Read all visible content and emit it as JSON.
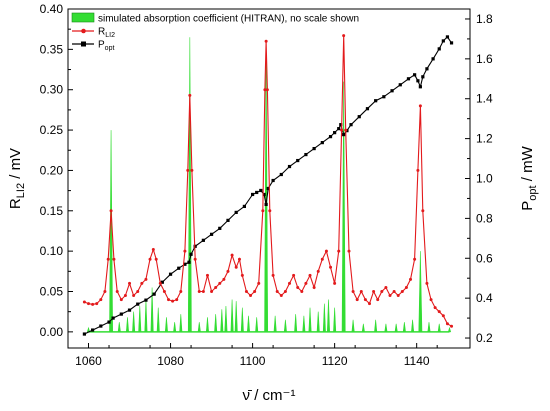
{
  "chart_data": {
    "type": "line",
    "title": "",
    "xlabel": "ν̄ / cm⁻¹",
    "ylabel_left": {
      "main": "R",
      "sub": "LI2",
      "unit": " / mV"
    },
    "ylabel_right": {
      "main": "P",
      "sub": "opt",
      "unit": " / mW"
    },
    "xlim": [
      1055,
      1153
    ],
    "ylim_left": [
      -0.02,
      0.4
    ],
    "ylim_right": [
      0.15,
      1.85
    ],
    "x_ticks": [
      "1060",
      "1080",
      "1100",
      "1120",
      "1140"
    ],
    "x_tick_values": [
      1060,
      1080,
      1100,
      1120,
      1140
    ],
    "y_left_ticks": [
      "0.00",
      "0.05",
      "0.10",
      "0.15",
      "0.20",
      "0.25",
      "0.30",
      "0.35",
      "0.40"
    ],
    "y_left_tick_values": [
      0,
      0.05,
      0.1,
      0.15,
      0.2,
      0.25,
      0.3,
      0.35,
      0.4
    ],
    "y_right_ticks": [
      "0.2",
      "0.4",
      "0.6",
      "0.8",
      "1.0",
      "1.2",
      "1.4",
      "1.6",
      "1.8"
    ],
    "y_right_tick_values": [
      0.2,
      0.4,
      0.6,
      0.8,
      1.0,
      1.2,
      1.4,
      1.6,
      1.8
    ],
    "grid": false,
    "legend_position": "top-left",
    "legend": [
      {
        "key": "hitran",
        "label": "simulated absorption coefficient (HITRAN), no scale shown",
        "sub": "",
        "after": ""
      },
      {
        "key": "rli2",
        "label": "R",
        "sub": "LI2",
        "after": ""
      },
      {
        "key": "popt",
        "label": "P",
        "sub": "opt",
        "after": ""
      }
    ],
    "colors": {
      "hitran": "#33dd33",
      "rli2": "#e31a1c",
      "popt": "#000000"
    },
    "series": [
      {
        "name": "simulated absorption coefficient (HITRAN), no scale shown",
        "key": "hitran",
        "axis": "left",
        "style": "fill",
        "peaks": [
          [
            1060.0,
            0.005
          ],
          [
            1065.5,
            0.25
          ],
          [
            1067.5,
            0.012
          ],
          [
            1069.5,
            0.018
          ],
          [
            1071.0,
            0.025
          ],
          [
            1072.5,
            0.032
          ],
          [
            1074.0,
            0.04
          ],
          [
            1075.5,
            0.055
          ],
          [
            1077.0,
            0.03
          ],
          [
            1079.0,
            0.018
          ],
          [
            1081.0,
            0.012
          ],
          [
            1082.5,
            0.022
          ],
          [
            1084.7,
            0.365
          ],
          [
            1087.0,
            0.012
          ],
          [
            1089.0,
            0.018
          ],
          [
            1091.0,
            0.022
          ],
          [
            1092.5,
            0.028
          ],
          [
            1093.5,
            0.032
          ],
          [
            1095.0,
            0.04
          ],
          [
            1096.0,
            0.038
          ],
          [
            1097.5,
            0.03
          ],
          [
            1099.0,
            0.02
          ],
          [
            1101.0,
            0.018
          ],
          [
            1103.3,
            0.36
          ],
          [
            1105.5,
            0.02
          ],
          [
            1108.0,
            0.015
          ],
          [
            1110.5,
            0.022
          ],
          [
            1112.5,
            0.02
          ],
          [
            1114.0,
            0.03
          ],
          [
            1116.0,
            0.025
          ],
          [
            1117.5,
            0.035
          ],
          [
            1118.5,
            0.04
          ],
          [
            1120.0,
            0.03
          ],
          [
            1122.2,
            0.31
          ],
          [
            1124.5,
            0.015
          ],
          [
            1127.0,
            0.01
          ],
          [
            1130.0,
            0.015
          ],
          [
            1132.5,
            0.01
          ],
          [
            1135.0,
            0.01
          ],
          [
            1137.0,
            0.012
          ],
          [
            1139.0,
            0.015
          ],
          [
            1140.9,
            0.1
          ],
          [
            1143.0,
            0.012
          ],
          [
            1145.5,
            0.01
          ],
          [
            1148.0,
            0.005
          ]
        ]
      },
      {
        "name": "R_LI2",
        "key": "rli2",
        "axis": "left",
        "style": "line-markers",
        "points": [
          [
            1059.0,
            0.037
          ],
          [
            1060.0,
            0.035
          ],
          [
            1061.0,
            0.034
          ],
          [
            1062.0,
            0.035
          ],
          [
            1063.0,
            0.04
          ],
          [
            1064.0,
            0.05
          ],
          [
            1064.8,
            0.09
          ],
          [
            1065.5,
            0.15
          ],
          [
            1066.2,
            0.09
          ],
          [
            1067.0,
            0.05
          ],
          [
            1068.0,
            0.04
          ],
          [
            1069.0,
            0.045
          ],
          [
            1070.0,
            0.06
          ],
          [
            1071.0,
            0.045
          ],
          [
            1072.0,
            0.05
          ],
          [
            1073.0,
            0.06
          ],
          [
            1074.0,
            0.065
          ],
          [
            1075.0,
            0.09
          ],
          [
            1075.8,
            0.102
          ],
          [
            1076.5,
            0.09
          ],
          [
            1077.5,
            0.06
          ],
          [
            1078.5,
            0.05
          ],
          [
            1079.5,
            0.04
          ],
          [
            1080.5,
            0.038
          ],
          [
            1081.5,
            0.04
          ],
          [
            1082.5,
            0.05
          ],
          [
            1083.5,
            0.1
          ],
          [
            1084.2,
            0.2
          ],
          [
            1084.7,
            0.293
          ],
          [
            1085.2,
            0.2
          ],
          [
            1086.0,
            0.09
          ],
          [
            1087.0,
            0.05
          ],
          [
            1088.0,
            0.05
          ],
          [
            1089.0,
            0.07
          ],
          [
            1090.0,
            0.05
          ],
          [
            1091.0,
            0.055
          ],
          [
            1092.0,
            0.06
          ],
          [
            1093.0,
            0.065
          ],
          [
            1094.0,
            0.075
          ],
          [
            1095.0,
            0.095
          ],
          [
            1096.0,
            0.08
          ],
          [
            1096.8,
            0.09
          ],
          [
            1097.5,
            0.07
          ],
          [
            1098.5,
            0.05
          ],
          [
            1099.5,
            0.045
          ],
          [
            1100.5,
            0.05
          ],
          [
            1101.5,
            0.06
          ],
          [
            1102.5,
            0.15
          ],
          [
            1103.0,
            0.3
          ],
          [
            1103.3,
            0.36
          ],
          [
            1103.6,
            0.3
          ],
          [
            1104.2,
            0.15
          ],
          [
            1105.0,
            0.07
          ],
          [
            1106.0,
            0.05
          ],
          [
            1107.0,
            0.045
          ],
          [
            1108.0,
            0.05
          ],
          [
            1109.0,
            0.06
          ],
          [
            1110.0,
            0.07
          ],
          [
            1111.0,
            0.055
          ],
          [
            1112.0,
            0.05
          ],
          [
            1113.0,
            0.06
          ],
          [
            1114.0,
            0.07
          ],
          [
            1115.0,
            0.055
          ],
          [
            1116.0,
            0.075
          ],
          [
            1117.0,
            0.09
          ],
          [
            1118.0,
            0.1
          ],
          [
            1119.0,
            0.08
          ],
          [
            1120.0,
            0.06
          ],
          [
            1121.0,
            0.1
          ],
          [
            1121.7,
            0.25
          ],
          [
            1122.2,
            0.367
          ],
          [
            1122.7,
            0.25
          ],
          [
            1123.5,
            0.1
          ],
          [
            1124.5,
            0.05
          ],
          [
            1125.5,
            0.04
          ],
          [
            1126.5,
            0.05
          ],
          [
            1127.5,
            0.04
          ],
          [
            1128.5,
            0.035
          ],
          [
            1129.5,
            0.05
          ],
          [
            1130.5,
            0.04
          ],
          [
            1131.5,
            0.05
          ],
          [
            1132.5,
            0.055
          ],
          [
            1133.5,
            0.045
          ],
          [
            1134.5,
            0.05
          ],
          [
            1135.5,
            0.045
          ],
          [
            1136.5,
            0.05
          ],
          [
            1137.5,
            0.055
          ],
          [
            1138.5,
            0.065
          ],
          [
            1139.5,
            0.09
          ],
          [
            1140.3,
            0.2
          ],
          [
            1140.9,
            0.28
          ],
          [
            1141.5,
            0.15
          ],
          [
            1142.5,
            0.06
          ],
          [
            1143.5,
            0.04
          ],
          [
            1144.5,
            0.03
          ],
          [
            1145.5,
            0.025
          ],
          [
            1146.5,
            0.02
          ],
          [
            1147.5,
            0.01
          ],
          [
            1148.5,
            0.007
          ]
        ]
      },
      {
        "name": "P_opt",
        "key": "popt",
        "axis": "right",
        "style": "line-markers",
        "points": [
          [
            1059.0,
            0.22
          ],
          [
            1061.0,
            0.24
          ],
          [
            1063.0,
            0.26
          ],
          [
            1065.0,
            0.28
          ],
          [
            1066.0,
            0.3
          ],
          [
            1068.0,
            0.32
          ],
          [
            1070.0,
            0.34
          ],
          [
            1072.0,
            0.37
          ],
          [
            1074.0,
            0.39
          ],
          [
            1076.0,
            0.42
          ],
          [
            1078.0,
            0.48
          ],
          [
            1080.0,
            0.52
          ],
          [
            1082.0,
            0.55
          ],
          [
            1083.5,
            0.57
          ],
          [
            1084.5,
            0.58
          ],
          [
            1085.0,
            0.62
          ],
          [
            1086.0,
            0.66
          ],
          [
            1088.0,
            0.69
          ],
          [
            1090.0,
            0.72
          ],
          [
            1092.0,
            0.75
          ],
          [
            1094.0,
            0.79
          ],
          [
            1096.0,
            0.83
          ],
          [
            1098.0,
            0.86
          ],
          [
            1100.0,
            0.92
          ],
          [
            1101.0,
            0.93
          ],
          [
            1102.0,
            0.94
          ],
          [
            1102.8,
            0.92
          ],
          [
            1103.3,
            0.87
          ],
          [
            1103.8,
            0.95
          ],
          [
            1105.0,
            0.99
          ],
          [
            1107.0,
            1.02
          ],
          [
            1109.0,
            1.06
          ],
          [
            1111.0,
            1.09
          ],
          [
            1113.0,
            1.12
          ],
          [
            1115.0,
            1.15
          ],
          [
            1117.0,
            1.18
          ],
          [
            1119.0,
            1.21
          ],
          [
            1120.0,
            1.23
          ],
          [
            1121.0,
            1.25
          ],
          [
            1121.5,
            1.27
          ],
          [
            1122.2,
            1.22
          ],
          [
            1123.0,
            1.24
          ],
          [
            1124.0,
            1.27
          ],
          [
            1126.0,
            1.31
          ],
          [
            1128.0,
            1.35
          ],
          [
            1130.0,
            1.39
          ],
          [
            1132.0,
            1.41
          ],
          [
            1134.0,
            1.44
          ],
          [
            1136.0,
            1.47
          ],
          [
            1138.0,
            1.5
          ],
          [
            1139.5,
            1.52
          ],
          [
            1140.3,
            1.49
          ],
          [
            1140.9,
            1.46
          ],
          [
            1141.5,
            1.51
          ],
          [
            1142.5,
            1.55
          ],
          [
            1144.0,
            1.6
          ],
          [
            1145.5,
            1.65
          ],
          [
            1146.5,
            1.69
          ],
          [
            1147.5,
            1.71
          ],
          [
            1148.5,
            1.68
          ]
        ]
      }
    ]
  }
}
